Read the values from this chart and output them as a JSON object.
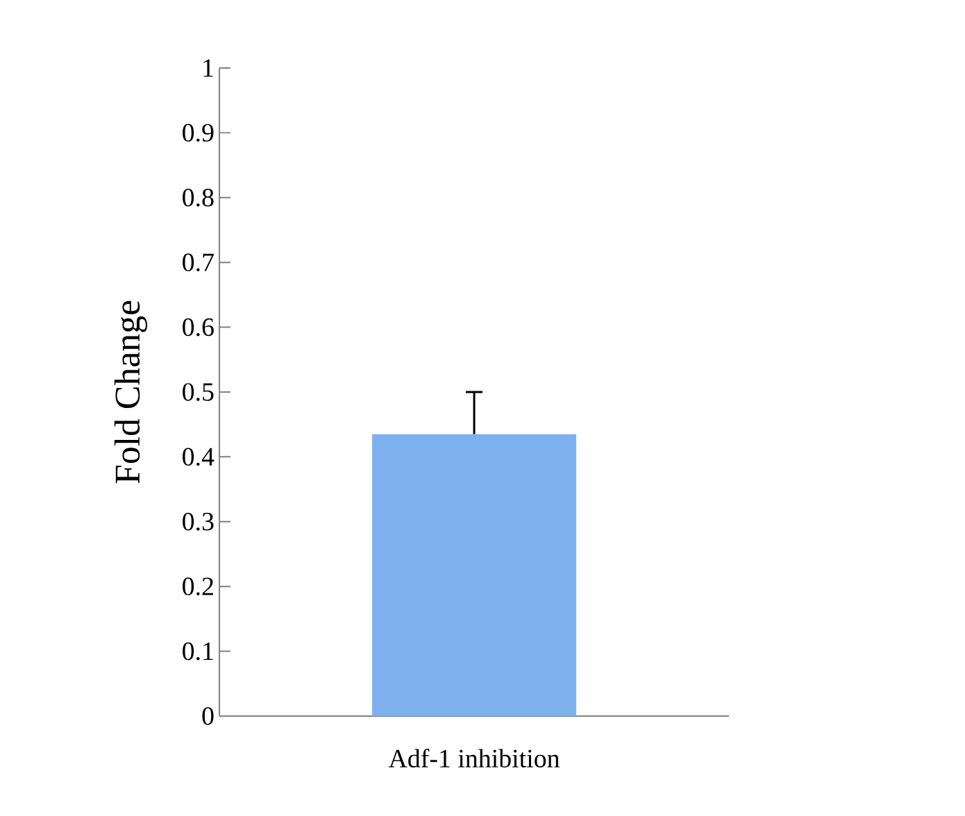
{
  "chart_data": {
    "type": "bar",
    "ylabel": "Fold Change",
    "categories": [
      "Adf-1 inhibition"
    ],
    "series": [
      {
        "color": "#7eb0ee",
        "values": [
          0.435
        ],
        "errors": [
          [
            0.435,
            0.5
          ]
        ]
      }
    ],
    "ylim": [
      0,
      1
    ],
    "yticks": [
      0,
      0.1,
      0.2,
      0.3,
      0.4,
      0.5,
      0.6,
      0.7,
      0.8,
      0.9,
      1
    ]
  }
}
